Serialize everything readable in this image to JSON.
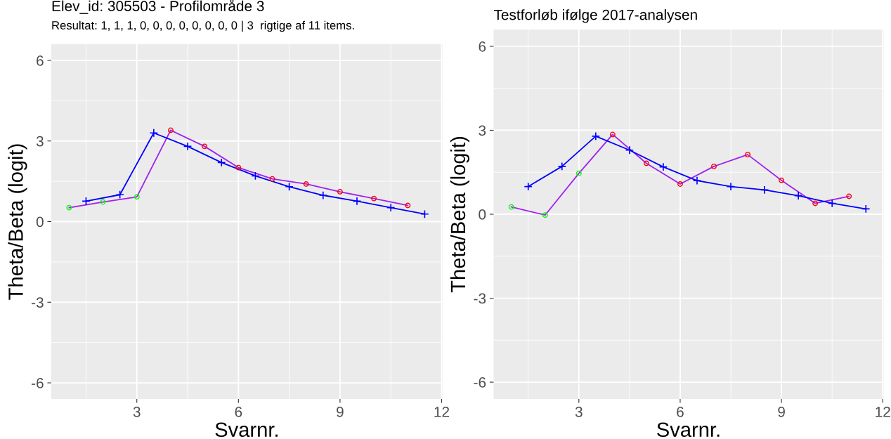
{
  "chart_data": [
    {
      "type": "line",
      "title": "Elev_id: 305503 - Profilområde 3",
      "subtitle": "Resultat: 1, 1, 1, 0, 0, 0, 0, 0, 0, 0, 0 | 3  rigtige af 11 items.",
      "xlabel": "Svarnr.",
      "ylabel": "Theta/Beta (logit)",
      "xlim": [
        0.475,
        12.025
      ],
      "ylim": [
        -6.6,
        6.6
      ],
      "xticks": [
        3,
        6,
        9,
        12
      ],
      "yticks": [
        -6,
        -3,
        0,
        3,
        6
      ],
      "grid": true,
      "series": [
        {
          "color": "#a020f0",
          "marker": "circle",
          "x": [
            1,
            2,
            3,
            4,
            5,
            6,
            7,
            8,
            9,
            10,
            11
          ],
          "values": [
            0.52,
            0.73,
            0.92,
            3.4,
            2.8,
            2.01,
            1.59,
            1.4,
            1.11,
            0.86,
            0.6
          ],
          "colors": [
            "#00ff00",
            "#00ff00",
            "#00ff00",
            "#ff0000",
            "#ff0000",
            "#ff0000",
            "#ff0000",
            "#ff0000",
            "#ff0000",
            "#ff0000",
            "#ff0000"
          ]
        },
        {
          "color": "#0000ff",
          "marker": "cross",
          "x": [
            1.5,
            2.5,
            3.5,
            4.5,
            5.5,
            6.5,
            7.5,
            8.5,
            9.5,
            10.5,
            11.5
          ],
          "values": [
            0.76,
            1.0,
            3.3,
            2.8,
            2.2,
            1.7,
            1.3,
            0.98,
            0.76,
            0.52,
            0.28
          ]
        }
      ]
    },
    {
      "type": "line",
      "title": "Testforløb ifølge 2017-analysen",
      "xlabel": "Svarnr.",
      "ylabel": "Theta/Beta (logit)",
      "xlim": [
        0.475,
        12.025
      ],
      "ylim": [
        -6.6,
        6.6
      ],
      "xticks": [
        3,
        6,
        9,
        12
      ],
      "yticks": [
        -6,
        -3,
        0,
        3,
        6
      ],
      "grid": true,
      "series": [
        {
          "color": "#a020f0",
          "marker": "circle",
          "x": [
            1,
            2,
            3,
            4,
            5,
            6,
            7,
            8,
            9,
            10,
            11
          ],
          "values": [
            0.26,
            -0.03,
            1.46,
            2.85,
            1.82,
            1.08,
            1.71,
            2.13,
            1.21,
            0.39,
            0.64
          ],
          "colors": [
            "#00ff00",
            "#00ff00",
            "#00ff00",
            "#ff0000",
            "#ff0000",
            "#ff0000",
            "#ff0000",
            "#ff0000",
            "#ff0000",
            "#ff0000",
            "#ff0000"
          ]
        },
        {
          "color": "#0000ff",
          "marker": "cross",
          "x": [
            1.5,
            2.5,
            3.5,
            4.5,
            5.5,
            6.5,
            7.5,
            8.5,
            9.5,
            10.5,
            11.5
          ],
          "values": [
            0.99,
            1.71,
            2.79,
            2.29,
            1.69,
            1.2,
            0.99,
            0.87,
            0.66,
            0.39,
            0.19
          ]
        }
      ]
    }
  ]
}
